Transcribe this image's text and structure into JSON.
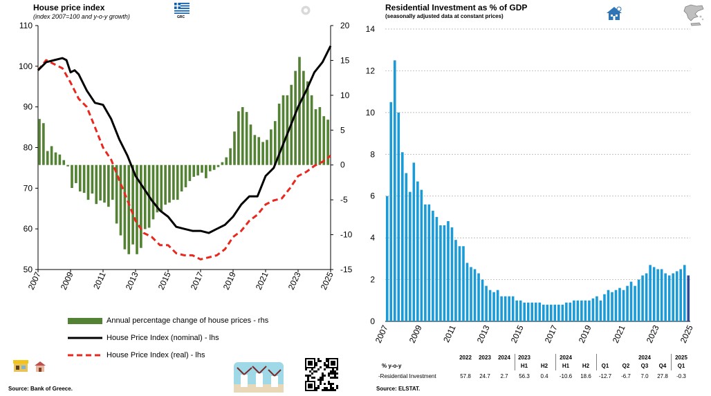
{
  "left": {
    "title": "House price index",
    "subtitle": "(index 2007=100 and y-o-y growth)",
    "flag_label": "GRC",
    "source": "Source: Bank of Greece.",
    "legend": [
      "Annual percentage change of house prices - rhs",
      "House Price Index (nominal) - lhs",
      "House Price Index (real) - lhs"
    ]
  },
  "right": {
    "title": "Residential Investment as % of GDP",
    "subtitle": "(seasonally adjusted data at constant prices)",
    "source": "Source: ELSTAT.",
    "table": {
      "row_header": "% y-o-y",
      "row_label": "-Residential Investment",
      "years": [
        "2022",
        "2023",
        "2024",
        "2023",
        "",
        "2024",
        "",
        "",
        "",
        "2024",
        "",
        "2025"
      ],
      "periods": [
        "",
        "",
        "",
        "H1",
        "H2",
        "H1",
        "H2",
        "Q1",
        "Q2",
        "Q3",
        "Q4",
        "Q1"
      ],
      "values": [
        "57.8",
        "24.7",
        "2.7",
        "56.3",
        "0.4",
        "-10.6",
        "18.6",
        "-12.7",
        "-6.7",
        "7.0",
        "27.8",
        "-0.3"
      ]
    }
  },
  "colors": {
    "bar_green": "#548235",
    "line_black": "#000000",
    "line_red": "#e8281e",
    "bar_blue": "#1a9ad6",
    "bar_last": "#2e4a9e"
  },
  "chart_data": [
    {
      "type": "bar+line",
      "title": "House price index",
      "subtitle": "(index 2007=100 and y-o-y growth)",
      "x_ticks": [
        "2007",
        "2009",
        "2011",
        "2013",
        "2015",
        "2017",
        "2019",
        "2021",
        "2023",
        "2025"
      ],
      "x_range": [
        2007,
        2025
      ],
      "y_left": {
        "range": [
          50,
          110
        ],
        "ticks": [
          "50",
          "60",
          "70",
          "80",
          "90",
          "100",
          "110"
        ]
      },
      "y_right": {
        "range": [
          -15,
          20
        ],
        "ticks": [
          "-15",
          "-10",
          "-5",
          "0",
          "5",
          "10",
          "15",
          "20"
        ]
      },
      "grid": "none",
      "legend_position": "bottom",
      "series": [
        {
          "name": "Annual percentage change of house prices - rhs",
          "kind": "bar",
          "axis": "right",
          "x": [
            2007.0,
            2007.25,
            2007.5,
            2007.75,
            2008.0,
            2008.25,
            2008.5,
            2008.75,
            2009.0,
            2009.25,
            2009.5,
            2009.75,
            2010.0,
            2010.25,
            2010.5,
            2010.75,
            2011.0,
            2011.25,
            2011.5,
            2011.75,
            2012.0,
            2012.25,
            2012.5,
            2012.75,
            2013.0,
            2013.25,
            2013.5,
            2013.75,
            2014.0,
            2014.25,
            2014.5,
            2014.75,
            2015.0,
            2015.25,
            2015.5,
            2015.75,
            2016.0,
            2016.25,
            2016.5,
            2016.75,
            2017.0,
            2017.25,
            2017.5,
            2017.75,
            2018.0,
            2018.25,
            2018.5,
            2018.75,
            2019.0,
            2019.25,
            2019.5,
            2019.75,
            2020.0,
            2020.25,
            2020.5,
            2020.75,
            2021.0,
            2021.25,
            2021.5,
            2021.75,
            2022.0,
            2022.25,
            2022.5,
            2022.75,
            2023.0,
            2023.25,
            2023.5,
            2023.75,
            2024.0,
            2024.25,
            2024.5,
            2024.75
          ],
          "values": [
            6.6,
            6.0,
            2.0,
            2.7,
            1.8,
            1.5,
            0.7,
            -0.2,
            -3.3,
            -2.6,
            -3.8,
            -4.0,
            -5.0,
            -4.1,
            -5.6,
            -5.1,
            -5.4,
            -6.0,
            -5.0,
            -8.4,
            -10.1,
            -12.1,
            -12.8,
            -11.4,
            -12.8,
            -11.9,
            -9.2,
            -9.0,
            -7.8,
            -6.8,
            -6.6,
            -5.7,
            -5.4,
            -5.0,
            -5.0,
            -3.8,
            -3.2,
            -2.3,
            -1.7,
            -1.5,
            -1.1,
            -1.9,
            -0.9,
            -0.7,
            -0.3,
            0.4,
            1.1,
            2.4,
            4.8,
            7.7,
            8.3,
            7.6,
            5.8,
            4.3,
            4.0,
            3.3,
            3.6,
            5.1,
            6.3,
            8.8,
            10.0,
            10.0,
            11.5,
            13.5,
            15.5,
            13.5,
            12.0,
            10.0,
            8.0,
            8.3,
            7.0,
            6.5
          ]
        },
        {
          "name": "House Price Index (nominal) - lhs",
          "kind": "line",
          "axis": "left",
          "x": [
            2007.0,
            2007.5,
            2008.0,
            2008.5,
            2008.75,
            2009.0,
            2009.25,
            2009.5,
            2010.0,
            2010.5,
            2011.0,
            2011.5,
            2012.0,
            2012.5,
            2013.0,
            2013.5,
            2014.0,
            2014.5,
            2015.0,
            2015.5,
            2016.0,
            2016.5,
            2017.0,
            2017.5,
            2018.0,
            2018.5,
            2019.0,
            2019.5,
            2020.0,
            2020.5,
            2021.0,
            2021.5,
            2022.0,
            2022.5,
            2023.0,
            2023.5,
            2024.0,
            2024.5,
            2025.0
          ],
          "values": [
            99,
            101,
            101.5,
            102,
            101.5,
            98.5,
            99,
            98,
            94,
            91,
            90.5,
            87,
            82,
            78,
            73,
            70,
            67,
            64.5,
            63,
            60.5,
            60,
            59.5,
            59.5,
            59,
            60,
            61,
            63,
            66,
            68,
            68,
            73,
            75,
            80,
            85,
            90,
            94,
            98.5,
            101,
            105
          ]
        },
        {
          "name": "House Price Index (real) - lhs",
          "kind": "line",
          "axis": "left",
          "x": [
            2007.0,
            2007.5,
            2008.0,
            2008.5,
            2009.0,
            2009.5,
            2010.0,
            2010.5,
            2011.0,
            2011.5,
            2012.0,
            2012.5,
            2013.0,
            2013.5,
            2014.0,
            2014.5,
            2015.0,
            2015.5,
            2016.0,
            2016.5,
            2017.0,
            2017.5,
            2018.0,
            2018.5,
            2019.0,
            2019.5,
            2020.0,
            2020.5,
            2021.0,
            2021.5,
            2022.0,
            2022.5,
            2023.0,
            2023.5,
            2024.0,
            2024.5,
            2025.0
          ],
          "values": [
            99,
            101.5,
            100.5,
            99.5,
            96,
            92,
            90,
            85,
            80,
            77,
            72,
            67,
            62,
            59,
            58,
            56,
            56,
            54,
            53.5,
            53.5,
            52.5,
            53,
            53.5,
            55,
            58,
            59.5,
            62,
            63.5,
            66,
            67,
            67.5,
            70,
            73,
            74,
            75.5,
            76.5,
            78
          ]
        }
      ]
    },
    {
      "type": "bar",
      "title": "Residential Investment as % of GDP",
      "subtitle": "(seasonally adjusted data at constant prices)",
      "x_ticks": [
        "2007",
        "2009",
        "2011",
        "2013",
        "2015",
        "2017",
        "2019",
        "2021",
        "2023",
        "2025"
      ],
      "x_range": [
        2007,
        2025
      ],
      "y_range": [
        0,
        14
      ],
      "y_ticks": [
        "0",
        "2",
        "4",
        "6",
        "8",
        "10",
        "12",
        "14"
      ],
      "grid": "horizontal dashed",
      "legend_position": "none",
      "series": [
        {
          "name": "",
          "values": [
            6.0,
            10.5,
            12.5,
            10.0,
            8.1,
            7.1,
            6.2,
            7.6,
            6.7,
            6.3,
            5.6,
            5.6,
            5.3,
            5.0,
            4.6,
            4.6,
            4.8,
            4.5,
            3.9,
            3.6,
            3.6,
            2.8,
            2.6,
            2.5,
            2.3,
            2.0,
            1.7,
            1.5,
            1.4,
            1.5,
            1.2,
            1.2,
            1.2,
            1.2,
            1.0,
            1.0,
            0.9,
            0.9,
            0.9,
            0.9,
            0.9,
            0.8,
            0.8,
            0.8,
            0.8,
            0.8,
            0.8,
            0.9,
            0.9,
            1.0,
            1.0,
            1.0,
            1.0,
            1.0,
            1.1,
            1.2,
            1.0,
            1.3,
            1.5,
            1.4,
            1.5,
            1.6,
            1.5,
            1.7,
            1.9,
            1.7,
            2.0,
            2.2,
            2.3,
            2.7,
            2.6,
            2.5,
            2.5,
            2.3,
            2.2,
            2.3,
            2.4,
            2.5,
            2.7,
            2.2
          ]
        }
      ]
    }
  ]
}
